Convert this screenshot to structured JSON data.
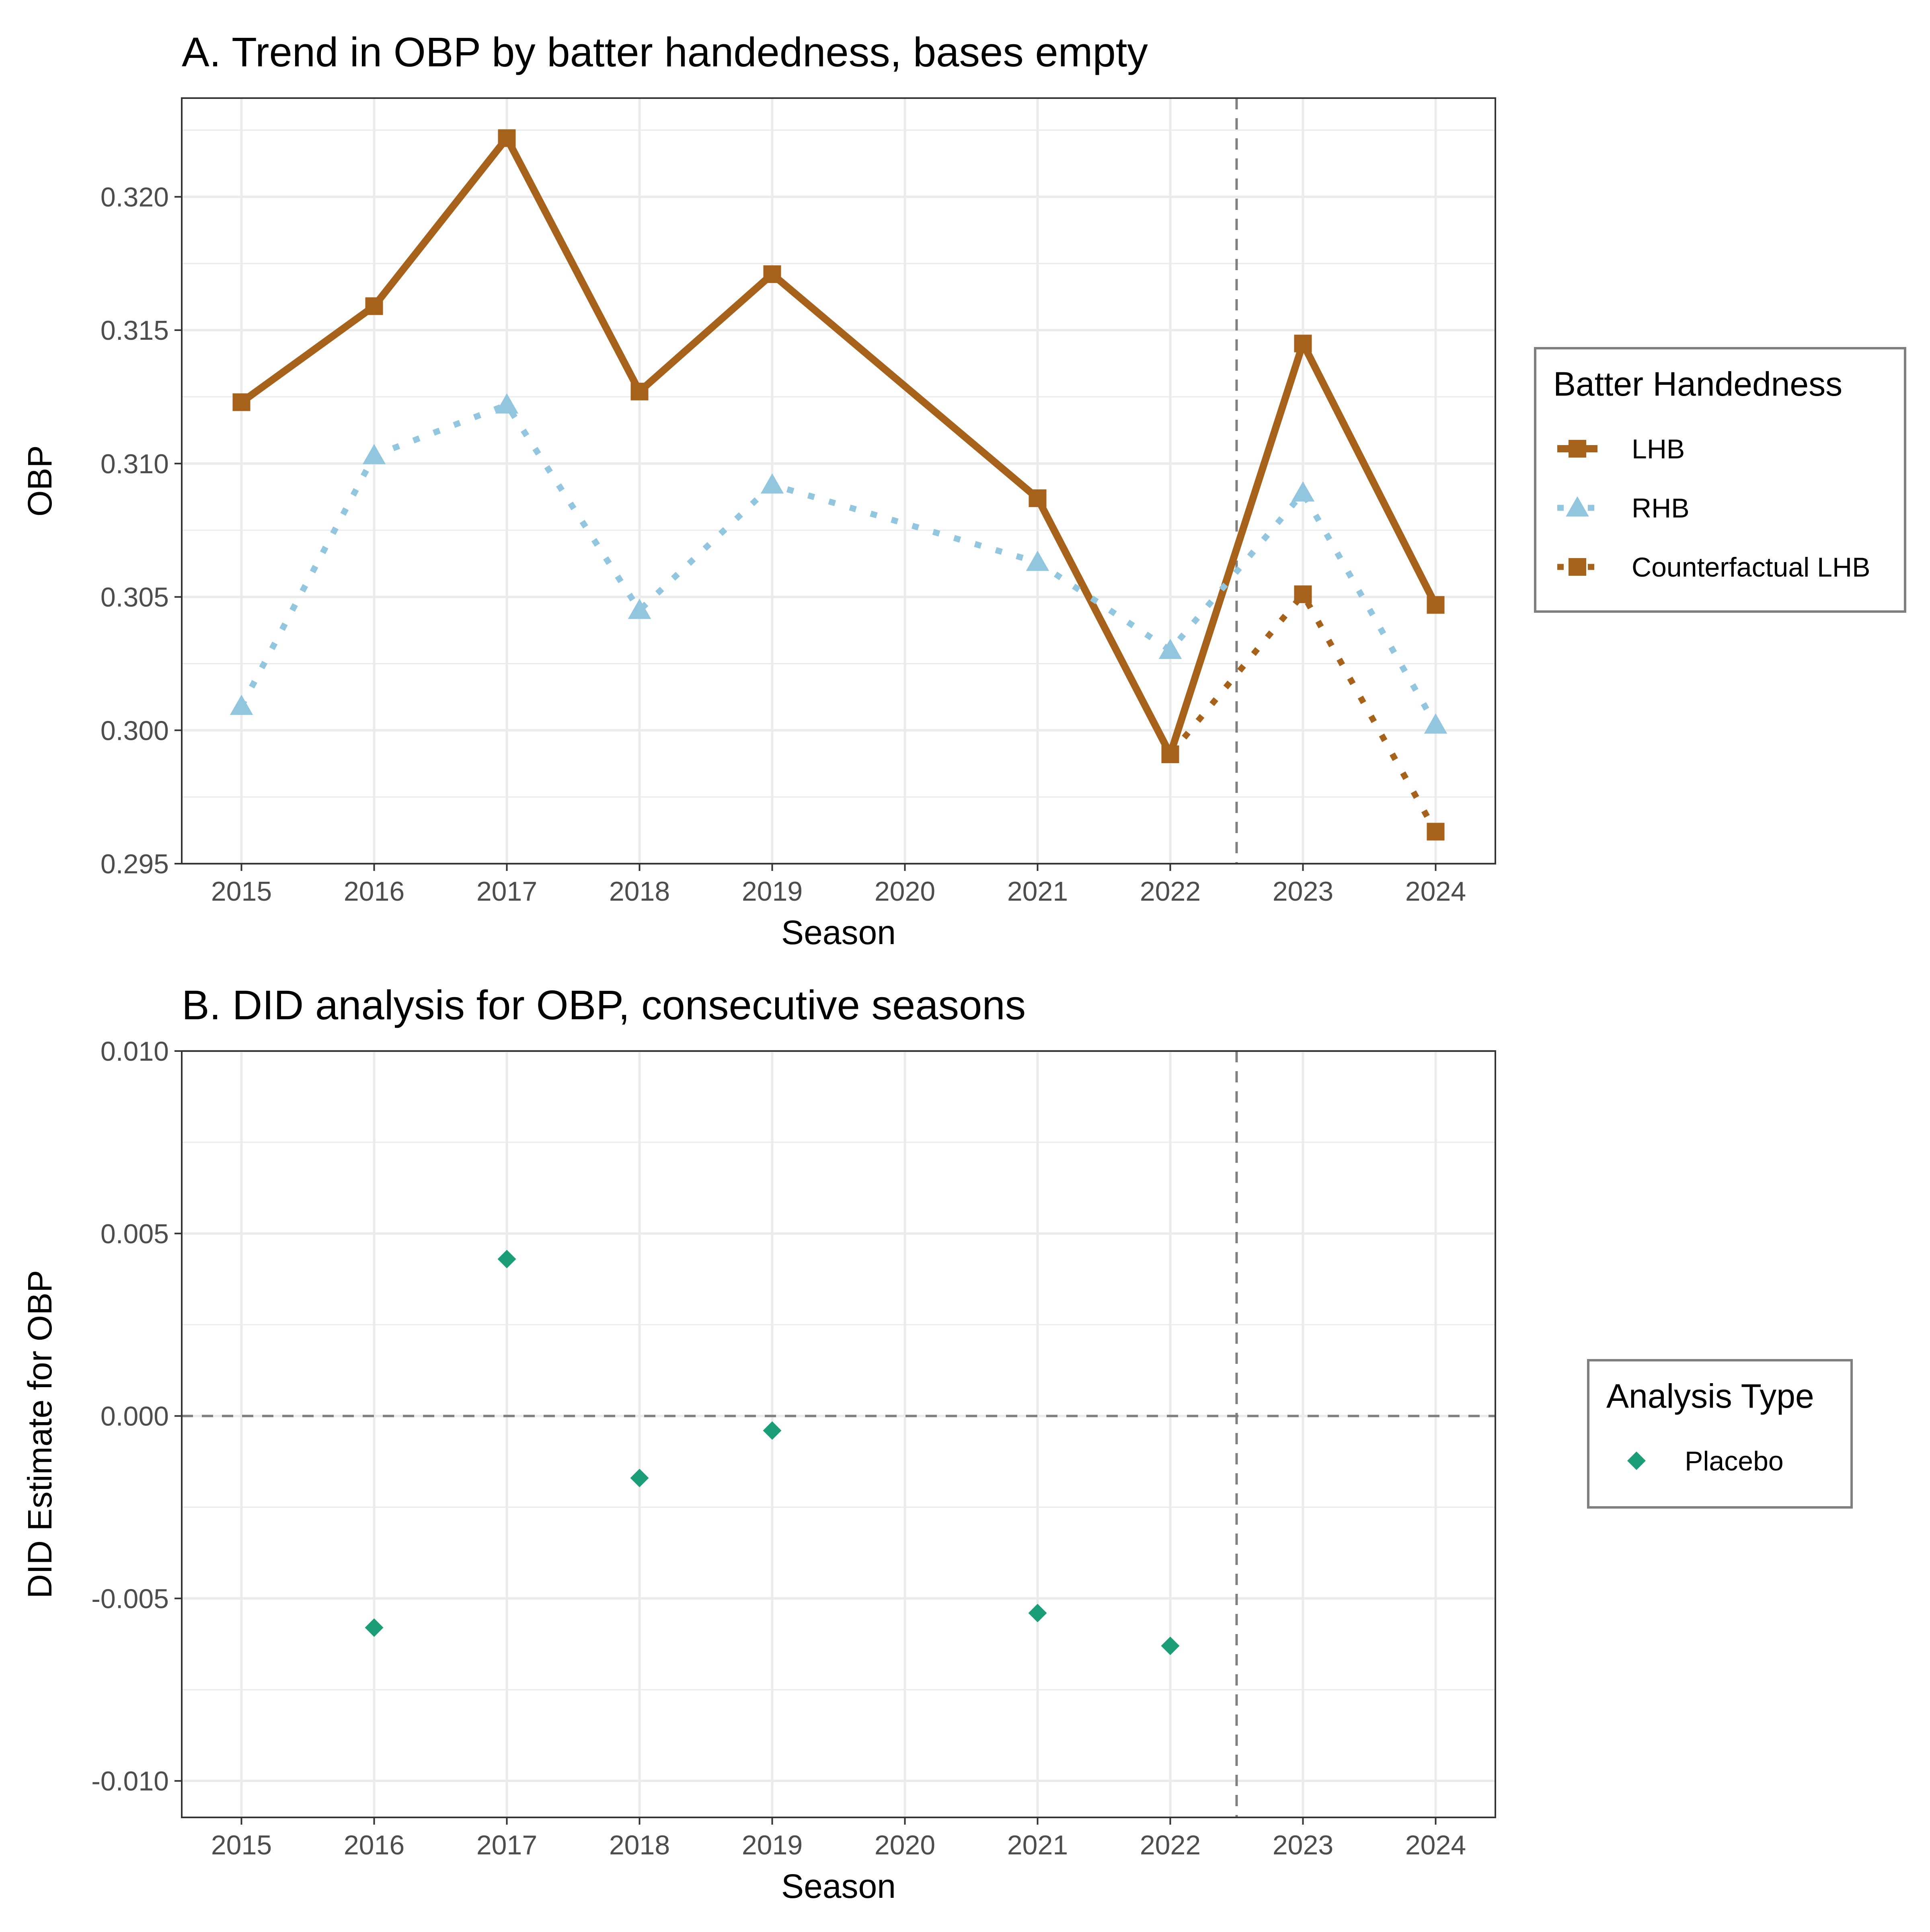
{
  "chart_data": [
    {
      "type": "line",
      "title": "A. Trend in OBP by batter handedness, bases empty",
      "xlabel": "Season",
      "ylabel": "OBP",
      "x_ticks": [
        "2015",
        "2016",
        "2017",
        "2018",
        "2019",
        "2020",
        "2021",
        "2022",
        "2023",
        "2024"
      ],
      "y_ticks": [
        "0.295",
        "0.300",
        "0.305",
        "0.310",
        "0.315",
        "0.320"
      ],
      "xlim": [
        2014.55,
        2024.45
      ],
      "ylim": [
        0.295,
        0.3237
      ],
      "vline": 2022.5,
      "grid": true,
      "legend": {
        "title": "Batter Handedness",
        "position": "right",
        "entries": [
          "LHB",
          "RHB",
          "Counterfactual LHB"
        ]
      },
      "series": [
        {
          "name": "LHB",
          "color": "#A6611A",
          "line": "solid",
          "marker": "square",
          "x": [
            2015,
            2016,
            2017,
            2018,
            2019,
            2021,
            2022,
            2023,
            2024
          ],
          "y": [
            0.3123,
            0.3159,
            0.3222,
            0.3127,
            0.3171,
            0.3087,
            0.2991,
            0.3145,
            0.3047
          ]
        },
        {
          "name": "RHB",
          "color": "#92C5DE",
          "line": "dotted",
          "marker": "triangle",
          "x": [
            2015,
            2016,
            2017,
            2018,
            2019,
            2021,
            2022,
            2023,
            2024
          ],
          "y": [
            0.3009,
            0.3103,
            0.3122,
            0.3045,
            0.3092,
            0.3063,
            0.303,
            0.3089,
            0.3002
          ]
        },
        {
          "name": "Counterfactual LHB",
          "color": "#A6611A",
          "line": "dotted",
          "marker": "square",
          "x": [
            2022,
            2023,
            2024
          ],
          "y": [
            0.2991,
            0.3051,
            0.2962
          ],
          "marker_x": [
            2023,
            2024
          ]
        }
      ]
    },
    {
      "type": "scatter",
      "title": "B. DID analysis for OBP, consecutive seasons",
      "xlabel": "Season",
      "ylabel": "DID Estimate for OBP",
      "x_ticks": [
        "2015",
        "2016",
        "2017",
        "2018",
        "2019",
        "2020",
        "2021",
        "2022",
        "2023",
        "2024"
      ],
      "y_ticks": [
        "-0.010",
        "-0.005",
        "0.000",
        "0.005",
        "0.010"
      ],
      "xlim": [
        2014.55,
        2024.45
      ],
      "ylim": [
        -0.011,
        0.01
      ],
      "vline": 2022.5,
      "hline": 0,
      "grid": true,
      "legend": {
        "title": "Analysis Type",
        "position": "right",
        "entries": [
          "Placebo"
        ]
      },
      "series": [
        {
          "name": "Placebo",
          "color": "#1B9E77",
          "marker": "diamond",
          "x": [
            2016,
            2017,
            2018,
            2019,
            2021,
            2022
          ],
          "y": [
            -0.0058,
            0.0043,
            -0.0017,
            -0.0004,
            -0.0054,
            -0.0063
          ]
        }
      ]
    }
  ]
}
